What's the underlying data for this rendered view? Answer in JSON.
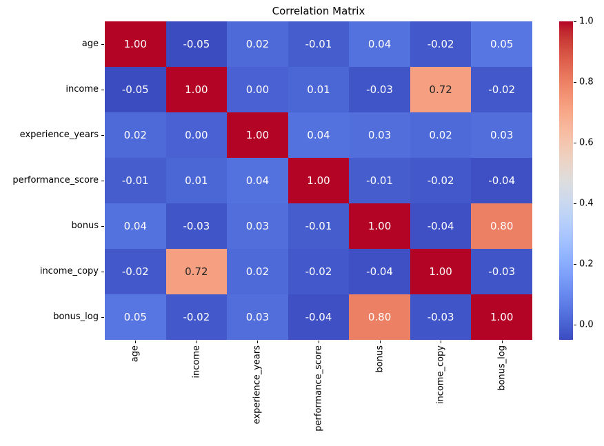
{
  "chart_data": {
    "type": "heatmap",
    "title": "Correlation Matrix",
    "categories": [
      "age",
      "income",
      "experience_years",
      "performance_score",
      "bonus",
      "income_copy",
      "bonus_log"
    ],
    "matrix": [
      [
        1.0,
        -0.05,
        0.02,
        -0.01,
        0.04,
        -0.02,
        0.05
      ],
      [
        -0.05,
        1.0,
        0.0,
        0.01,
        -0.03,
        0.72,
        -0.02
      ],
      [
        0.02,
        0.0,
        1.0,
        0.04,
        0.03,
        0.02,
        0.03
      ],
      [
        -0.01,
        0.01,
        0.04,
        1.0,
        -0.01,
        -0.02,
        -0.04
      ],
      [
        0.04,
        -0.03,
        0.03,
        -0.01,
        1.0,
        -0.04,
        0.8
      ],
      [
        -0.02,
        0.72,
        0.02,
        -0.02,
        -0.04,
        1.0,
        -0.03
      ],
      [
        0.05,
        -0.02,
        0.03,
        -0.04,
        0.8,
        -0.03,
        1.0
      ]
    ],
    "value_decimals": 2,
    "colormap": "coolwarm",
    "vmin": -0.05,
    "vmax": 1.0,
    "colorbar": {
      "tick_labels": [
        "1.0",
        "0.8",
        "0.6",
        "0.4",
        "0.2",
        "0.0"
      ],
      "tick_values": [
        1.0,
        0.8,
        0.6,
        0.4,
        0.2,
        0.0
      ],
      "position": "right"
    },
    "legend_position": "none",
    "grid": false,
    "colors": {
      "background": "#ffffff",
      "colormap_min": "#3b4cc0",
      "colormap_mid": "#dddddd",
      "colormap_max": "#b40426",
      "annotation_light": "#ffffff",
      "annotation_dark": "#262626",
      "axis_text": "#000000"
    }
  }
}
